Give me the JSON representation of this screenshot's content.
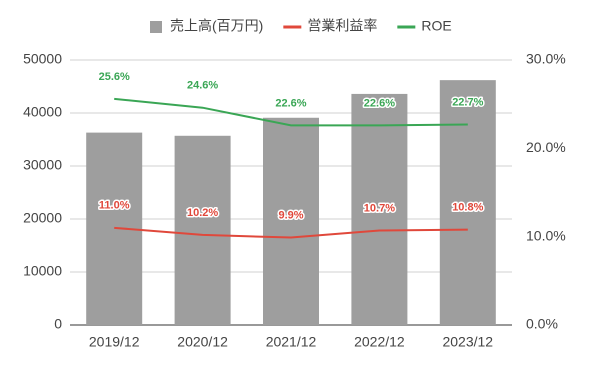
{
  "chart_data": {
    "type": "bar",
    "categories": [
      "2019/12",
      "2020/12",
      "2021/12",
      "2022/12",
      "2023/12"
    ],
    "series": [
      {
        "name": "売上高(百万円)",
        "type": "bar",
        "axis": "y",
        "color": "#9e9e9e",
        "values": [
          36300,
          35700,
          39100,
          43600,
          46200
        ]
      },
      {
        "name": "営業利益率",
        "type": "line",
        "axis": "y2",
        "color": "#e0483b",
        "values": [
          11.0,
          10.2,
          9.9,
          10.7,
          10.8
        ],
        "value_labels": [
          "11.0%",
          "10.2%",
          "9.9%",
          "10.7%",
          "10.8%"
        ]
      },
      {
        "name": "ROE",
        "type": "line",
        "axis": "y2",
        "color": "#3aa655",
        "values": [
          25.6,
          24.6,
          22.6,
          22.6,
          22.7
        ],
        "value_labels": [
          "25.6%",
          "24.6%",
          "22.6%",
          "22.6%",
          "22.7%"
        ]
      }
    ],
    "ylim": [
      0,
      50000
    ],
    "yticks": [
      0,
      10000,
      20000,
      30000,
      40000,
      50000
    ],
    "y2lim": [
      0,
      30
    ],
    "y2ticks": [
      {
        "value": 0,
        "label": "0.0%"
      },
      {
        "value": 10,
        "label": "10.0%"
      },
      {
        "value": 20,
        "label": "20.0%"
      },
      {
        "value": 30,
        "label": "30.0%"
      }
    ],
    "grid": true,
    "legend": "top"
  }
}
